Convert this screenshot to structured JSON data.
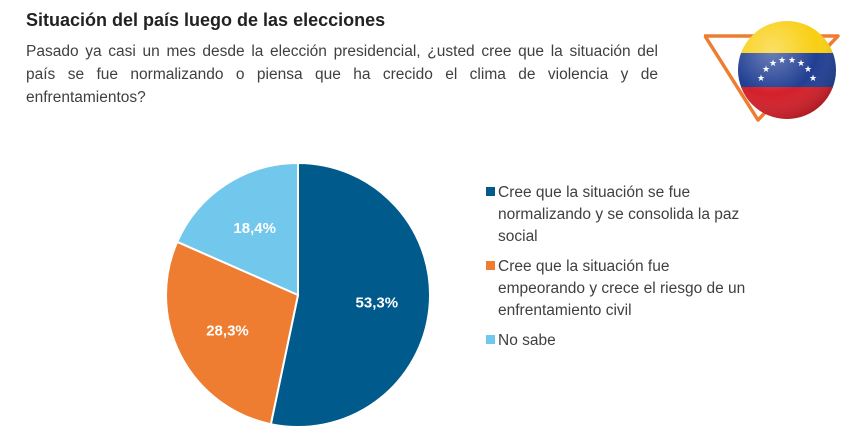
{
  "header": {
    "title": "Situación del país luego de las elecciones",
    "question": "Pasado ya casi un mes desde la elección presidencial, ¿usted cree que la situación del país se fue normalizando o piensa que ha crecido el clima de violencia y de enfrentamientos?"
  },
  "badge": {
    "icon": "venezuela-flag-icon",
    "accent": "#ee7d31"
  },
  "chart_data": {
    "type": "pie",
    "title": "",
    "start_angle_deg": 0,
    "direction": "clockwise",
    "legend_position": "right",
    "slices": [
      {
        "label": "Cree que la situación se fue normalizando y se consolida la paz social",
        "value": 53.3,
        "display": "53,3%",
        "color": "#005a8c"
      },
      {
        "label": "Cree que la situación fue empeorando y crece el riesgo de un enfrentamiento civil",
        "value": 28.3,
        "display": "28,3%",
        "color": "#ee7d31"
      },
      {
        "label": "No sabe",
        "value": 18.4,
        "display": "18,4%",
        "color": "#72c7ec"
      }
    ]
  }
}
